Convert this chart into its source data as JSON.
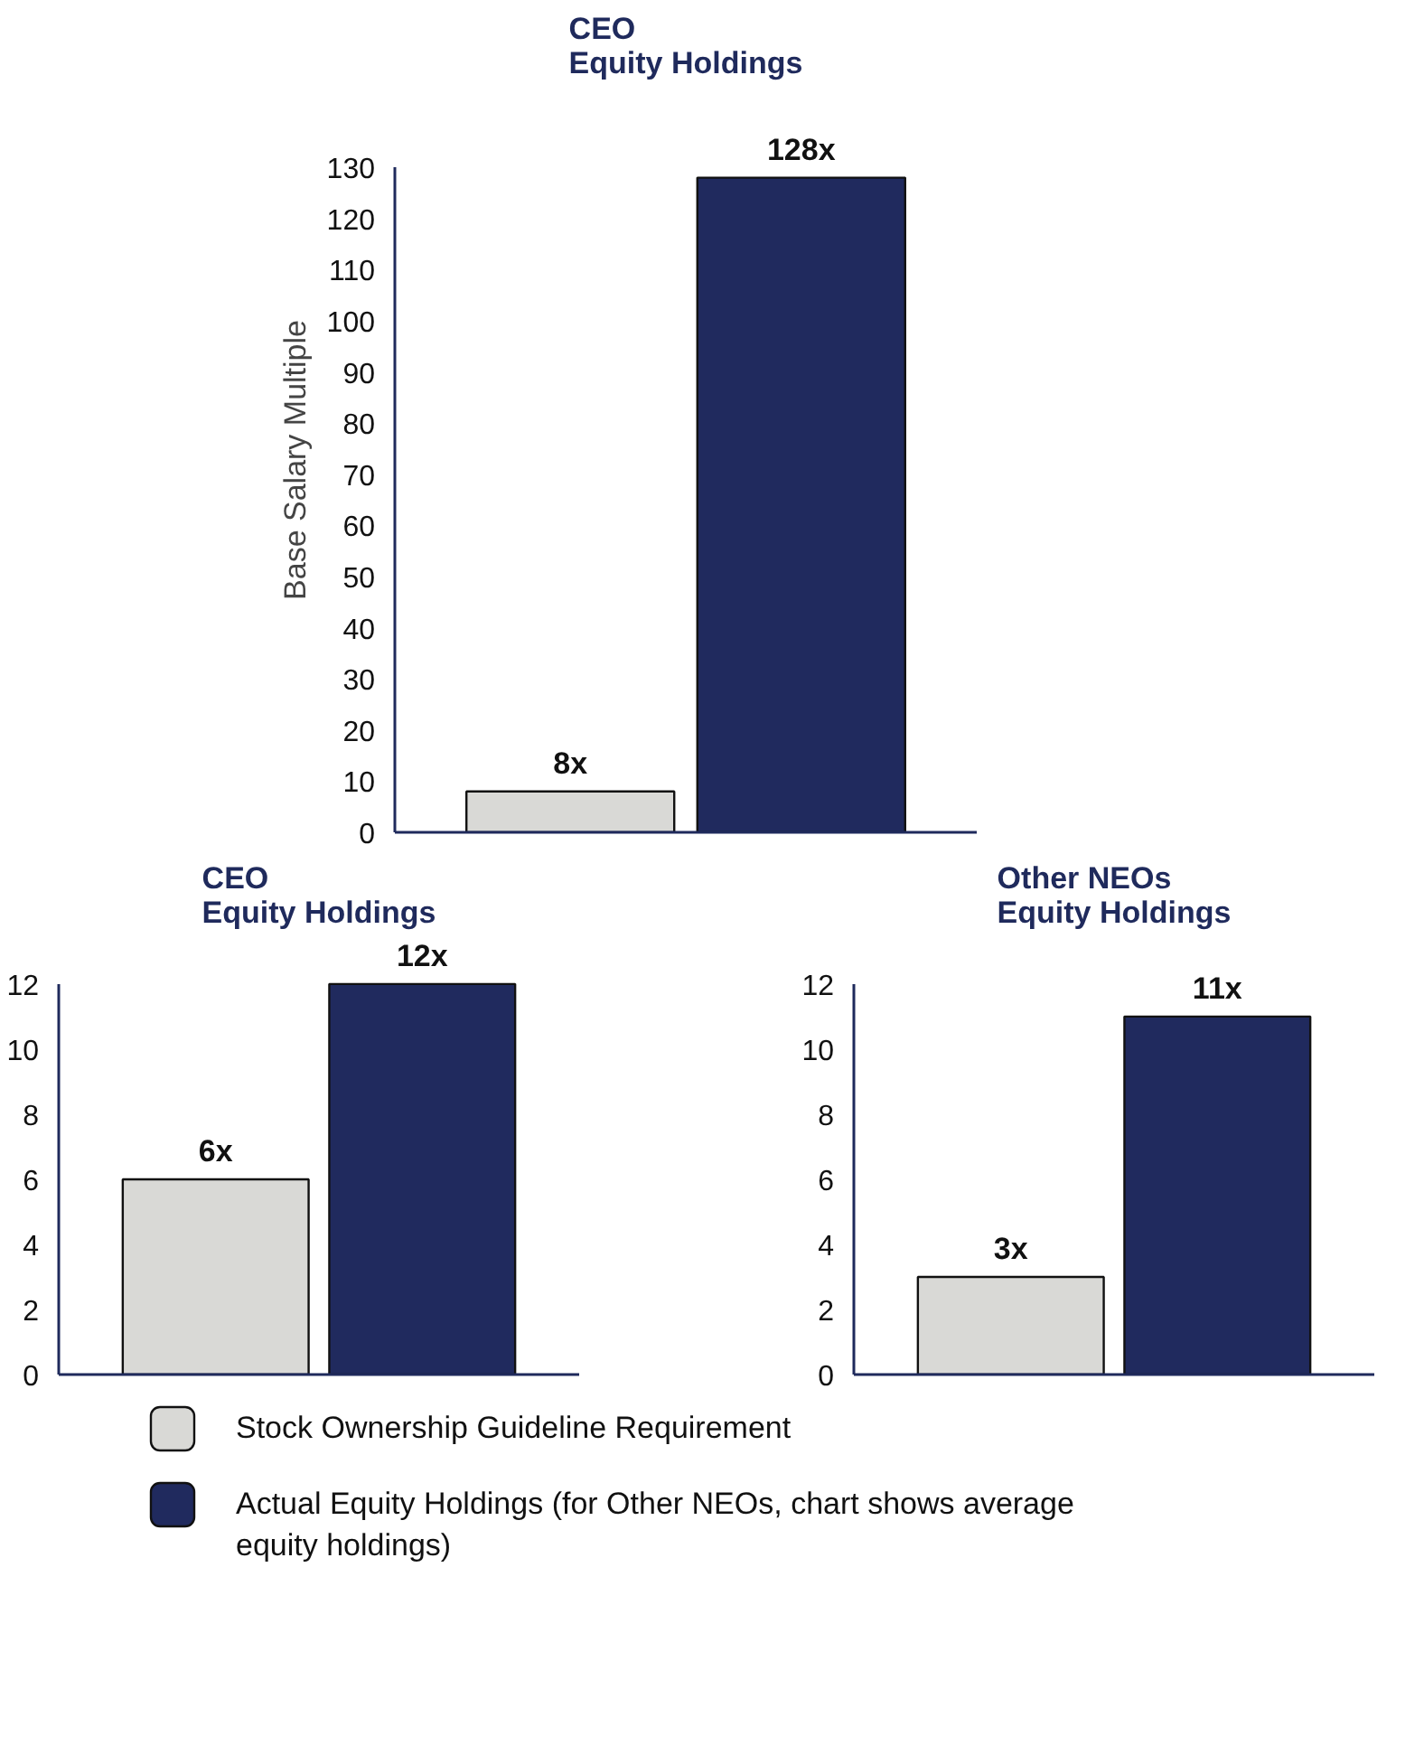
{
  "chart_data": [
    {
      "type": "bar",
      "title": "CEO\nEquity Holdings",
      "ylabel": "Base Salary Multiple",
      "categories": [
        null,
        null
      ],
      "ylim": [
        0,
        130
      ],
      "yticks": [
        0,
        10,
        20,
        30,
        40,
        50,
        60,
        70,
        80,
        90,
        100,
        110,
        120,
        130
      ],
      "grid": false,
      "legend": false,
      "series": [
        {
          "color": "#d9d9d6",
          "values": [
            8,
            null
          ],
          "value_labels": [
            "8x",
            null
          ]
        },
        {
          "color": "#202a5e",
          "values": [
            null,
            128
          ],
          "value_labels": [
            null,
            "128x"
          ]
        }
      ]
    },
    {
      "type": "bar",
      "title": "CEO\nEquity Holdings",
      "categories": [
        null,
        null
      ],
      "ylim": [
        0,
        12
      ],
      "yticks": [
        0,
        2,
        4,
        6,
        8,
        10,
        12
      ],
      "grid": false,
      "legend": false,
      "series": [
        {
          "color": "#d9d9d6",
          "values": [
            6,
            null
          ],
          "value_labels": [
            "6x",
            null
          ]
        },
        {
          "color": "#202a5e",
          "values": [
            null,
            12
          ],
          "value_labels": [
            null,
            "12x"
          ]
        }
      ]
    },
    {
      "type": "bar",
      "title": "Other NEOs\nEquity Holdings",
      "categories": [
        null,
        null
      ],
      "ylim": [
        0,
        12
      ],
      "yticks": [
        0,
        2,
        4,
        6,
        8,
        10,
        12
      ],
      "grid": false,
      "legend": "bottom",
      "series": [
        {
          "name": "Stock Ownership Guideline Requirement",
          "color": "#d9d9d6",
          "values": [
            3,
            null
          ],
          "value_labels": [
            "3x",
            null
          ]
        },
        {
          "name": "Actual Equity Holdings (for Other NEOs, chart shows average\nequity holdings)",
          "color": "#202a5e",
          "values": [
            null,
            11
          ],
          "value_labels": [
            null,
            "11x"
          ]
        }
      ]
    }
  ]
}
